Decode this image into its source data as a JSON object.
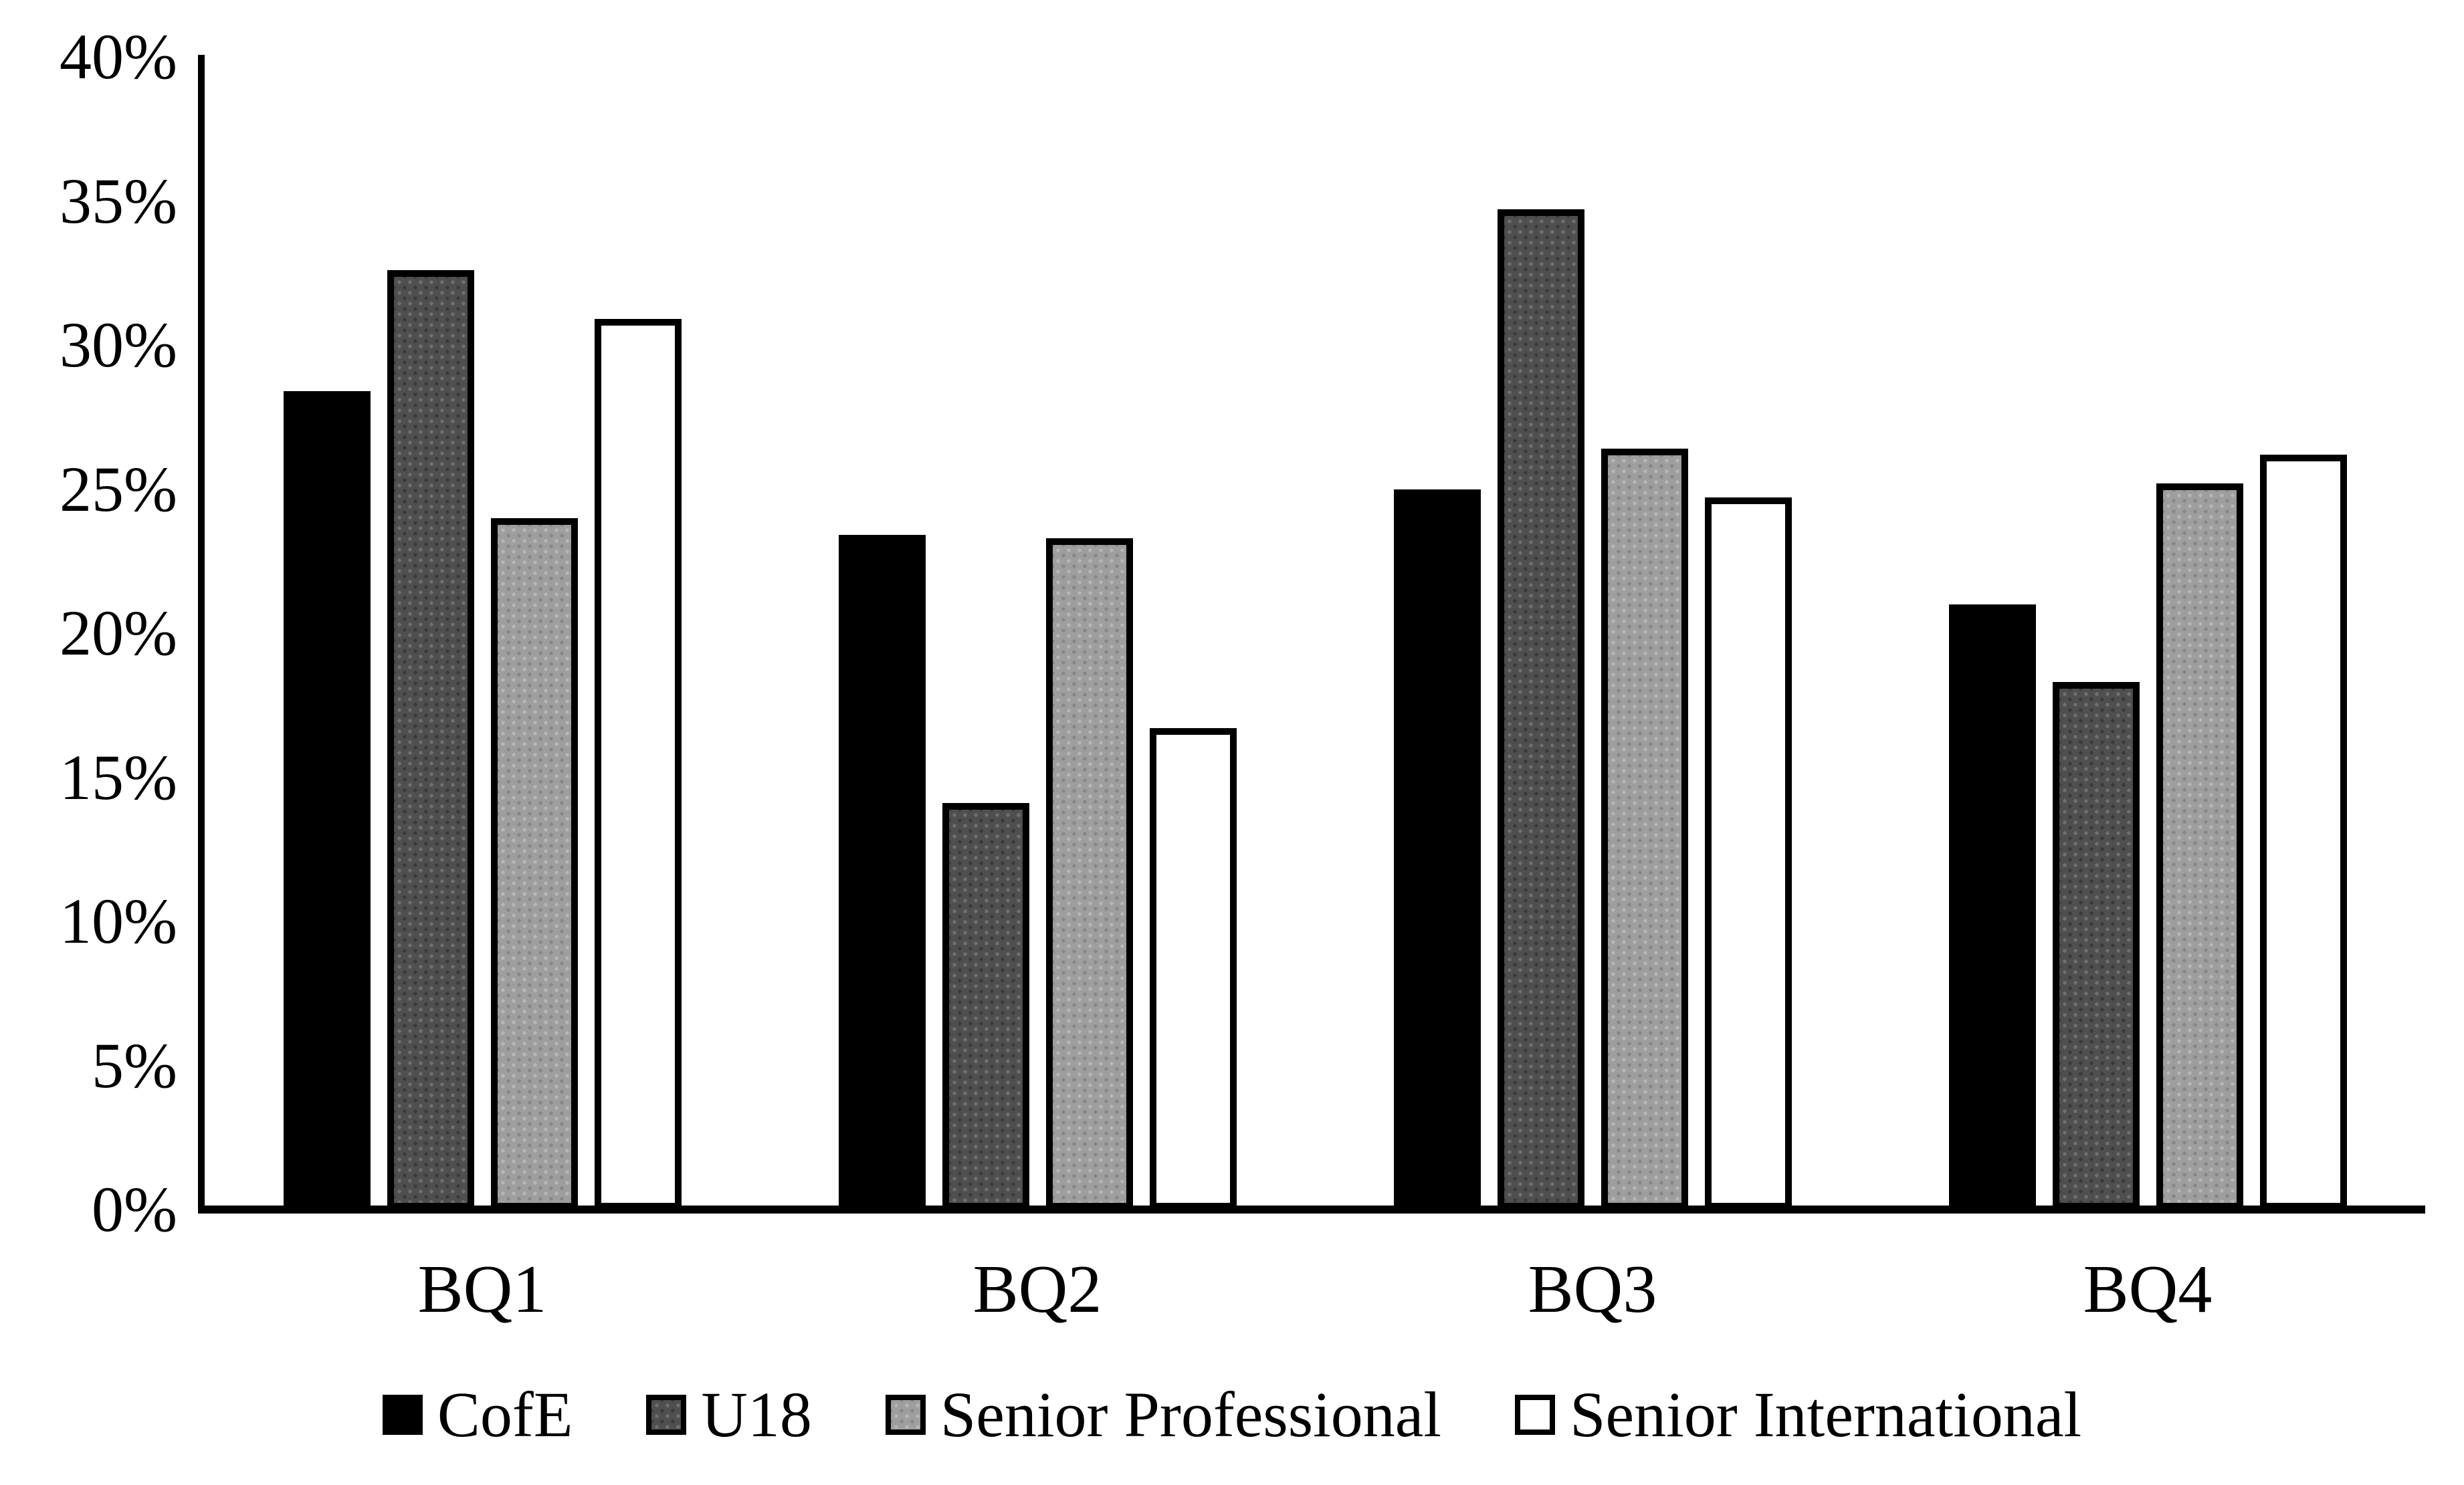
{
  "chart_data": {
    "type": "bar",
    "title": "",
    "xlabel": "",
    "ylabel": "",
    "categories": [
      "BQ1",
      "BQ2",
      "BQ3",
      "BQ4"
    ],
    "series": [
      {
        "name": "CofE",
        "color": "#000000",
        "pattern": "solid",
        "values": [
          28.4,
          23.4,
          25.0,
          21.0
        ]
      },
      {
        "name": "U18",
        "color": "#4f4f4f",
        "pattern": "dotted-dark",
        "values": [
          32.6,
          14.1,
          34.7,
          18.3
        ]
      },
      {
        "name": "Senior Professional",
        "color": "#9e9e9e",
        "pattern": "dotted-light",
        "values": [
          24.0,
          23.3,
          26.4,
          25.2
        ]
      },
      {
        "name": "Senior International",
        "color": "#ffffff",
        "pattern": "white-outline",
        "values": [
          30.9,
          16.7,
          24.7,
          26.2
        ]
      }
    ],
    "ylim": [
      0,
      40
    ],
    "ytick_step": 5,
    "ytick_labels": [
      "0%",
      "5%",
      "10%",
      "15%",
      "20%",
      "25%",
      "30%",
      "35%",
      "40%"
    ],
    "grid": false,
    "legend_position": "bottom",
    "axis_color": "#000000",
    "background_color": "#ffffff"
  }
}
